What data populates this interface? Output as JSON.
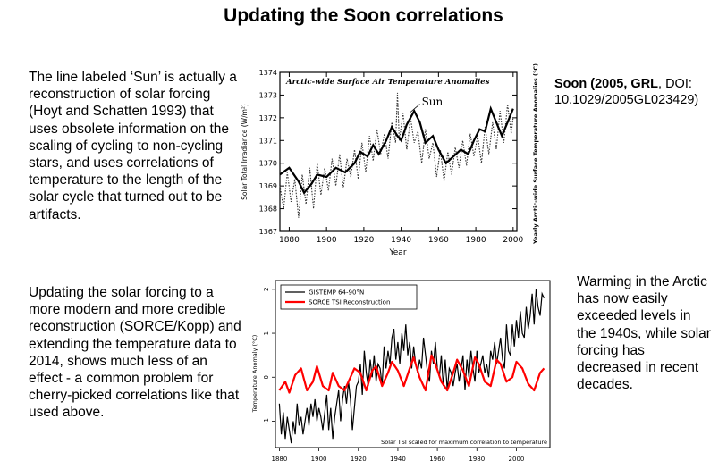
{
  "slide": {
    "title": "Updating the Soon correlations",
    "left_text_top": "The line labeled ‘Sun’ is actually a reconstruction of solar forcing (Hoyt and Schatten 1993) that uses obsolete information on the scaling of cycling to non-cycling stars, and uses correlations of temperature to the length of the solar cycle that turned out to be artifacts.",
    "citation": {
      "bold_part": "Soon (2005, GRL",
      "rest": ", DOI: 10.1029/2005GL023429)"
    },
    "left_text_bottom": "Updating the solar forcing to a more modern and more credible  reconstruction (SORCE/Kopp) and extending the temperature data to 2014, shows much less of an effect - a common problem for cherry-picked correlations like that used above.",
    "right_text_bottom": "Warming in the Arctic has now easily exceeded levels in the 1940s, while solar forcing has decreased in recent decades."
  },
  "colors": {
    "temperature": "#000000",
    "sorce": "#ff0000"
  },
  "chart_data": [
    {
      "type": "line",
      "title": "Arctic-wide Surface Air Temperature Anomalies",
      "xlabel": "Year",
      "ylabel": "Solar Total Irradiance (W/m²)",
      "ylabel_right": "Yearly Arctic-wide Surface Temperature Anomalies (°C)",
      "xlim": [
        1875,
        2002
      ],
      "ylim": [
        1367,
        1374
      ],
      "x_ticks": [
        "1880",
        "1900",
        "1920",
        "1940",
        "1960",
        "1980",
        "2000"
      ],
      "y_ticks": [
        "1367",
        "1368",
        "1369",
        "1370",
        "1371",
        "1372",
        "1373",
        "1374"
      ],
      "series": [
        {
          "name": "Sun",
          "style": "solid",
          "x": [
            1875,
            1880,
            1885,
            1888,
            1892,
            1895,
            1900,
            1905,
            1910,
            1915,
            1918,
            1922,
            1925,
            1928,
            1932,
            1935,
            1938,
            1940,
            1943,
            1947,
            1950,
            1953,
            1957,
            1960,
            1964,
            1968,
            1972,
            1976,
            1979,
            1982,
            1985,
            1988,
            1991,
            1994,
            1997,
            2000
          ],
          "values": [
            1369.5,
            1369.8,
            1369.2,
            1368.7,
            1369.1,
            1369.5,
            1369.4,
            1369.8,
            1369.6,
            1370.0,
            1370.5,
            1370.3,
            1370.8,
            1370.4,
            1371.0,
            1371.6,
            1371.2,
            1371.0,
            1371.7,
            1372.3,
            1371.8,
            1370.9,
            1371.2,
            1370.6,
            1370.0,
            1370.3,
            1370.6,
            1370.4,
            1371.0,
            1371.5,
            1371.4,
            1372.4,
            1371.8,
            1371.2,
            1371.8,
            1372.4
          ]
        },
        {
          "name": "Arctic-wide Surface Air Temperature Anomalies",
          "style": "dotted",
          "x": [
            1875,
            1877,
            1879,
            1881,
            1883,
            1885,
            1887,
            1889,
            1891,
            1893,
            1895,
            1897,
            1899,
            1901,
            1903,
            1905,
            1907,
            1909,
            1911,
            1913,
            1915,
            1917,
            1919,
            1921,
            1923,
            1925,
            1927,
            1929,
            1931,
            1933,
            1935,
            1937,
            1938,
            1939,
            1941,
            1943,
            1945,
            1947,
            1949,
            1951,
            1953,
            1955,
            1957,
            1959,
            1961,
            1963,
            1965,
            1967,
            1969,
            1971,
            1973,
            1975,
            1977,
            1979,
            1981,
            1983,
            1985,
            1987,
            1989,
            1991,
            1993,
            1995,
            1997,
            1999,
            2000
          ],
          "values": [
            1369.0,
            1368.0,
            1369.6,
            1368.3,
            1369.3,
            1367.6,
            1369.5,
            1368.2,
            1369.8,
            1368.0,
            1370.0,
            1368.6,
            1369.8,
            1368.8,
            1370.2,
            1369.0,
            1370.4,
            1368.9,
            1370.2,
            1369.4,
            1370.6,
            1369.3,
            1370.9,
            1369.6,
            1371.2,
            1370.1,
            1371.5,
            1370.4,
            1371.3,
            1370.2,
            1371.8,
            1370.9,
            1373.1,
            1371.0,
            1372.2,
            1370.6,
            1372.0,
            1370.9,
            1371.4,
            1370.0,
            1371.5,
            1370.2,
            1370.9,
            1369.4,
            1370.6,
            1369.2,
            1370.5,
            1369.5,
            1370.7,
            1369.8,
            1371.0,
            1369.9,
            1371.3,
            1370.3,
            1371.2,
            1370.0,
            1371.6,
            1370.4,
            1371.8,
            1370.6,
            1372.3,
            1370.9,
            1372.6,
            1371.3,
            1372.0
          ]
        }
      ]
    },
    {
      "type": "line",
      "ylabel": "Temperature Anomaly (°C)",
      "annotation": "Solar TSI scaled for maximum correlation to temperature",
      "legend_position": "top-left",
      "xlim": [
        1878,
        2017
      ],
      "ylim": [
        -1.6,
        2.2
      ],
      "x_ticks": [
        "1880",
        "1900",
        "1920",
        "1940",
        "1960",
        "1980",
        "2000"
      ],
      "y_ticks": [
        "-1",
        "0",
        "1",
        "2"
      ],
      "y_tick_values": [
        -1,
        0,
        1,
        2
      ],
      "series": [
        {
          "name": "GISTEMP 64-90°N",
          "color": "#000000",
          "x": [
            1880,
            1881,
            1882,
            1883,
            1884,
            1885,
            1886,
            1887,
            1888,
            1889,
            1890,
            1891,
            1892,
            1893,
            1894,
            1895,
            1896,
            1897,
            1898,
            1899,
            1900,
            1901,
            1902,
            1903,
            1904,
            1905,
            1906,
            1907,
            1908,
            1909,
            1910,
            1911,
            1912,
            1913,
            1914,
            1915,
            1916,
            1917,
            1918,
            1919,
            1920,
            1921,
            1922,
            1923,
            1924,
            1925,
            1926,
            1927,
            1928,
            1929,
            1930,
            1931,
            1932,
            1933,
            1934,
            1935,
            1936,
            1937,
            1938,
            1939,
            1940,
            1941,
            1942,
            1943,
            1944,
            1945,
            1946,
            1947,
            1948,
            1949,
            1950,
            1951,
            1952,
            1953,
            1954,
            1955,
            1956,
            1957,
            1958,
            1959,
            1960,
            1961,
            1962,
            1963,
            1964,
            1965,
            1966,
            1967,
            1968,
            1969,
            1970,
            1971,
            1972,
            1973,
            1974,
            1975,
            1976,
            1977,
            1978,
            1979,
            1980,
            1981,
            1982,
            1983,
            1984,
            1985,
            1986,
            1987,
            1988,
            1989,
            1990,
            1991,
            1992,
            1993,
            1994,
            1995,
            1996,
            1997,
            1998,
            1999,
            2000,
            2001,
            2002,
            2003,
            2004,
            2005,
            2006,
            2007,
            2008,
            2009,
            2010,
            2011,
            2012,
            2013,
            2014
          ],
          "values": [
            -0.6,
            -1.3,
            -0.8,
            -1.4,
            -0.9,
            -1.2,
            -1.5,
            -1.0,
            -1.3,
            -0.6,
            -1.1,
            -0.9,
            -1.3,
            -1.0,
            -0.7,
            -1.1,
            -0.6,
            -0.9,
            -0.5,
            -1.0,
            -0.7,
            -0.9,
            -1.2,
            -0.8,
            -0.4,
            -1.2,
            -0.7,
            -1.4,
            -0.9,
            -0.6,
            -0.3,
            -1.0,
            -0.5,
            -0.2,
            -0.6,
            -0.1,
            -0.5,
            -1.2,
            -0.7,
            -0.2,
            -0.1,
            0.3,
            -0.4,
            0.6,
            0.1,
            -0.2,
            0.4,
            0.0,
            0.5,
            -0.1,
            0.3,
            0.2,
            -0.2,
            0.7,
            0.2,
            0.6,
            0.3,
            0.9,
            1.1,
            0.4,
            0.8,
            0.3,
            1.0,
            0.6,
            1.2,
            0.5,
            0.8,
            0.2,
            0.7,
            0.3,
            0.1,
            0.4,
            0.2,
            0.9,
            0.5,
            0.1,
            -0.1,
            0.6,
            0.3,
            0.8,
            0.2,
            0.0,
            0.5,
            -0.2,
            0.4,
            -0.3,
            0.2,
            0.1,
            -0.2,
            0.1,
            0.3,
            -0.1,
            0.2,
            0.5,
            -0.3,
            0.4,
            0.0,
            0.6,
            0.2,
            -0.1,
            0.6,
            0.1,
            0.3,
            0.5,
            0.1,
            0.3,
            0.0,
            0.6,
            0.4,
            0.8,
            0.3,
            0.6,
            0.9,
            0.4,
            0.2,
            1.2,
            0.6,
            0.5,
            1.2,
            0.7,
            1.3,
            0.9,
            1.5,
            1.0,
            0.9,
            1.6,
            1.1,
            1.4,
            1.9,
            1.2,
            2.0,
            1.6,
            1.4,
            1.9,
            1.8
          ]
        },
        {
          "name": "SORCE TSI Reconstruction",
          "color": "#ff0000",
          "x": [
            1880,
            1883,
            1885,
            1888,
            1891,
            1894,
            1897,
            1899,
            1902,
            1905,
            1907,
            1910,
            1913,
            1916,
            1918,
            1921,
            1924,
            1927,
            1929,
            1932,
            1935,
            1937,
            1940,
            1943,
            1946,
            1948,
            1951,
            1954,
            1957,
            1959,
            1962,
            1965,
            1968,
            1970,
            1973,
            1976,
            1979,
            1981,
            1984,
            1987,
            1990,
            1992,
            1995,
            1998,
            2000,
            2003,
            2006,
            2009,
            2012,
            2014
          ],
          "values": [
            -0.3,
            -0.1,
            -0.35,
            0.05,
            0.2,
            -0.3,
            -0.1,
            0.25,
            -0.2,
            -0.3,
            0.1,
            -0.2,
            -0.3,
            0.0,
            0.2,
            0.1,
            -0.3,
            0.15,
            0.25,
            -0.2,
            0.1,
            0.35,
            0.15,
            -0.2,
            0.2,
            0.45,
            0.0,
            -0.3,
            0.5,
            0.3,
            -0.1,
            -0.3,
            0.1,
            0.4,
            0.15,
            -0.2,
            0.45,
            0.3,
            -0.1,
            -0.2,
            0.4,
            0.3,
            -0.1,
            0.0,
            0.35,
            0.2,
            -0.15,
            -0.3,
            0.1,
            0.2
          ]
        }
      ]
    }
  ]
}
